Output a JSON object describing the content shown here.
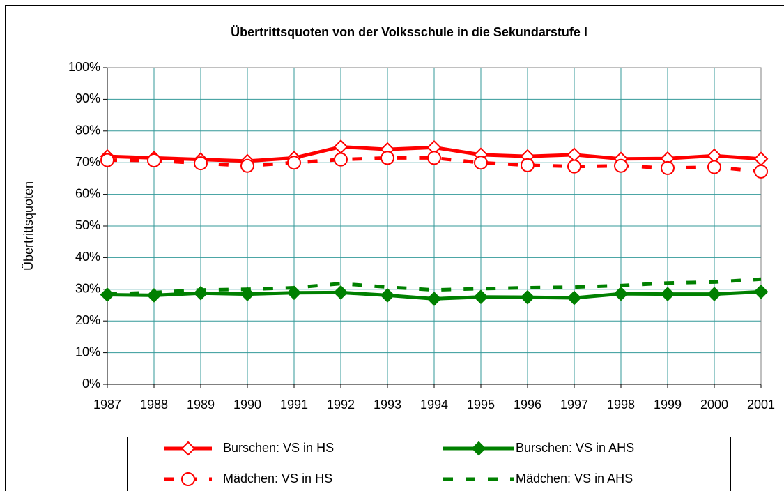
{
  "chart_data": {
    "type": "line",
    "title": "Übertrittsquoten von der Volksschule in die Sekundarstufe I",
    "y_label": "Übertrittsquoten",
    "categories": [
      "1987",
      "1988",
      "1989",
      "1990",
      "1991",
      "1992",
      "1993",
      "1994",
      "1995",
      "1996",
      "1997",
      "1998",
      "1999",
      "2000",
      "2001"
    ],
    "ylim": [
      0,
      100
    ],
    "yticks": [
      {
        "value": 0,
        "label": "0%"
      },
      {
        "value": 10,
        "label": "10%"
      },
      {
        "value": 20,
        "label": "20%"
      },
      {
        "value": 30,
        "label": "30%"
      },
      {
        "value": 40,
        "label": "40%"
      },
      {
        "value": 50,
        "label": "50%"
      },
      {
        "value": 60,
        "label": "60%"
      },
      {
        "value": 70,
        "label": "70%"
      },
      {
        "value": 80,
        "label": "80%"
      },
      {
        "value": 90,
        "label": "90%"
      },
      {
        "value": 100,
        "label": "100%"
      }
    ],
    "grid": true,
    "legend": "bottom",
    "series": [
      {
        "name": "Burschen: VS in HS",
        "color": "#ff0000",
        "dash": false,
        "marker": "diamond",
        "marker_fill": "#ffffff",
        "values": [
          72,
          71.5,
          71,
          70.5,
          71.5,
          75,
          74.2,
          74.8,
          72.5,
          72,
          72.5,
          71.2,
          71.3,
          72.2,
          71.2
        ]
      },
      {
        "name": "Burschen: VS in AHS",
        "color": "#008000",
        "dash": false,
        "marker": "diamond",
        "marker_fill": "#008000",
        "values": [
          28.3,
          28.1,
          28.8,
          28.5,
          28.9,
          29,
          28.1,
          27,
          27.6,
          27.5,
          27.3,
          28.6,
          28.5,
          28.5,
          29.2
        ]
      },
      {
        "name": "Mädchen: VS in HS",
        "color": "#ff0000",
        "dash": true,
        "marker": "circle",
        "marker_fill": "#ffffff",
        "values": [
          70.8,
          70.7,
          69.8,
          69,
          70,
          71,
          71.5,
          71.5,
          70,
          69.2,
          68.8,
          69,
          68.3,
          68.6,
          67.2
        ]
      },
      {
        "name": "Mädchen: VS in AHS",
        "color": "#008000",
        "dash": true,
        "marker": null,
        "marker_fill": null,
        "values": [
          28.5,
          29,
          29.8,
          30,
          30.5,
          31.8,
          30.7,
          29.8,
          30.2,
          30.5,
          30.7,
          31.2,
          32,
          32.3,
          33.2
        ]
      }
    ]
  }
}
